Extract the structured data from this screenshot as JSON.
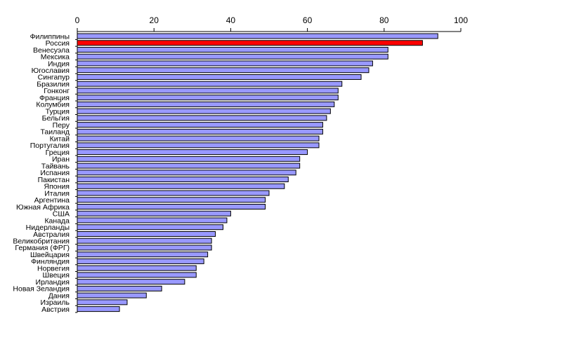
{
  "chart_data": {
    "type": "bar",
    "orientation": "horizontal",
    "title": "",
    "xlabel": "",
    "ylabel": "",
    "xlim": [
      0,
      100
    ],
    "x_ticks": [
      "0",
      "20",
      "40",
      "60",
      "80",
      "100"
    ],
    "x_axis_position": "top",
    "grid": false,
    "legend": "none",
    "bar_color": "#9999ff",
    "highlight_color": "#ff0000",
    "highlight_category": "Россия",
    "categories": [
      "Филиппины",
      "Россия",
      "Венесуэла",
      "Мексика",
      "Индия",
      "Югославия",
      "Сингапур",
      "Бразилия",
      "Гонконг",
      "Франция",
      "Колумбия",
      "Турция",
      "Бельгия",
      "Перу",
      "Таиланд",
      "Китай",
      "Португалия",
      "Греция",
      "Иран",
      "Тайвань",
      "Испания",
      "Пакистан",
      "Япония",
      "Италия",
      "Аргентина",
      "Южная Африка",
      "США",
      "Канада",
      "Нидерланды",
      "Австралия",
      "Великобритания",
      "Германия (ФРГ)",
      "Швейцария",
      "Финляндия",
      "Норвегия",
      "Швеция",
      "Ирландия",
      "Новая Зеландия",
      "Дания",
      "Израиль",
      "Австрия"
    ],
    "values": [
      94,
      90,
      81,
      81,
      77,
      76,
      74,
      69,
      68,
      68,
      67,
      66,
      65,
      64,
      64,
      63,
      63,
      60,
      58,
      58,
      57,
      55,
      54,
      50,
      49,
      49,
      40,
      39,
      38,
      36,
      35,
      35,
      34,
      33,
      31,
      31,
      28,
      22,
      18,
      13,
      11
    ]
  }
}
